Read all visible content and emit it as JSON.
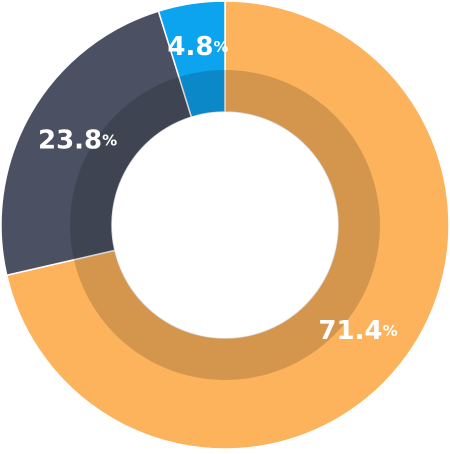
{
  "chart_data": {
    "type": "donut",
    "categories": [
      null,
      null,
      null
    ],
    "values": [
      71.4,
      23.8,
      4.8
    ],
    "value_labels": [
      "71.4%",
      "23.8%",
      "4.8%"
    ],
    "colors": [
      "#fdb35b",
      "#4b5162",
      "#0ca3ef"
    ]
  }
}
